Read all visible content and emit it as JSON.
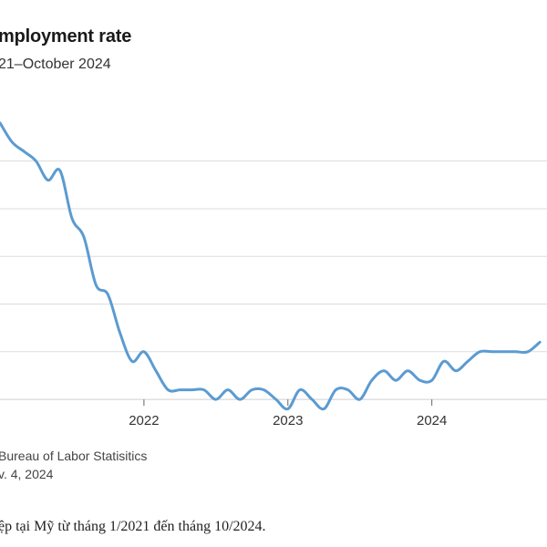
{
  "chart_data": {
    "type": "line",
    "title": "mployment rate",
    "subtitle": "21–October 2024",
    "xlabel": "",
    "ylabel": "",
    "x_ticks": [
      "2022",
      "2023",
      "2024"
    ],
    "x_tick_positions": [
      2022.0,
      2023.0,
      2024.0
    ],
    "xlim": [
      2021.0,
      2024.8
    ],
    "ylim": [
      3.3,
      6.8
    ],
    "y_gridlines": [
      3.5,
      4.0,
      4.5,
      5.0,
      5.5,
      6.0
    ],
    "grid": "horizontal",
    "line_color": "#5b9bd1",
    "series": [
      {
        "x": [
          2021.0,
          2021.083,
          2021.167,
          2021.25,
          2021.333,
          2021.417,
          2021.5,
          2021.583,
          2021.667,
          2021.75,
          2021.833,
          2021.917,
          2022.0,
          2022.083,
          2022.167,
          2022.25,
          2022.333,
          2022.417,
          2022.5,
          2022.583,
          2022.667,
          2022.75,
          2022.833,
          2022.917,
          2023.0,
          2023.083,
          2023.167,
          2023.25,
          2023.333,
          2023.417,
          2023.5,
          2023.583,
          2023.667,
          2023.75,
          2023.833,
          2023.917,
          2024.0,
          2024.083,
          2024.167,
          2024.25,
          2024.333,
          2024.417,
          2024.5,
          2024.583,
          2024.667,
          2024.75
        ],
        "values": [
          6.4,
          6.2,
          6.1,
          6.0,
          5.8,
          5.9,
          5.4,
          5.2,
          4.7,
          4.6,
          4.2,
          3.9,
          4.0,
          3.8,
          3.6,
          3.6,
          3.6,
          3.6,
          3.5,
          3.6,
          3.5,
          3.6,
          3.6,
          3.5,
          3.4,
          3.6,
          3.5,
          3.4,
          3.6,
          3.6,
          3.5,
          3.7,
          3.8,
          3.7,
          3.8,
          3.7,
          3.7,
          3.9,
          3.8,
          3.9,
          4.0,
          4.0,
          4.0,
          4.0,
          4.0,
          4.1
        ]
      }
    ]
  },
  "source": "Bureau of Labor Statisitics",
  "date": "v. 4, 2024",
  "caption": "ệp tại Mỹ từ tháng 1/2021 đến tháng 10/2024."
}
